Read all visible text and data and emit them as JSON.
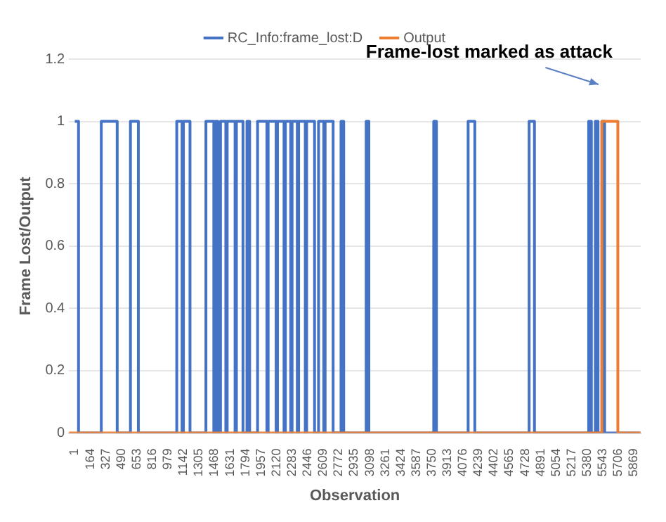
{
  "chart_data": {
    "type": "step",
    "xlabel": "Observation",
    "ylabel": "Frame Lost/Output",
    "xlim": [
      -60,
      5940
    ],
    "xticks": [
      1,
      164,
      327,
      490,
      653,
      816,
      979,
      1142,
      1305,
      1468,
      1631,
      1794,
      1957,
      2120,
      2283,
      2446,
      2609,
      2772,
      2935,
      3098,
      3261,
      3424,
      3587,
      3750,
      3913,
      4076,
      4239,
      4402,
      4565,
      4728,
      4891,
      5054,
      5217,
      5380,
      5543,
      5706,
      5869
    ],
    "ylim": [
      0,
      1.2
    ],
    "yticks": [
      0,
      0.2,
      0.4,
      0.6,
      0.8,
      1,
      1.2
    ],
    "grid": "y",
    "legend": "top",
    "marker": "none",
    "line_style": "solid",
    "annotations": [
      "Frame-lost marked as attack"
    ],
    "series": [
      {
        "name": "RC_Info:frame_lost:D",
        "color": "#4472c4",
        "x": [
          1,
          40,
          279,
          446,
          585,
          668,
          1071,
          1127,
          1141,
          1210,
          1377,
          1460,
          1474,
          1502,
          1530,
          1586,
          1600,
          1683,
          1697,
          1766,
          1808,
          1836,
          1919,
          2017,
          2030,
          2114,
          2128,
          2197,
          2211,
          2267,
          2281,
          2336,
          2350,
          2420,
          2434,
          2517,
          2559,
          2614,
          2628,
          2712,
          2795,
          2823,
          3059,
          3087,
          3768,
          3796,
          4129,
          4199,
          4769,
          4825,
          5394,
          5422,
          5464,
          5492,
          5533,
          5561,
          5930
        ],
        "values": [
          1,
          0,
          1,
          0,
          1,
          0,
          1,
          0,
          1,
          0,
          1,
          0,
          1,
          0,
          1,
          0,
          1,
          0,
          1,
          0,
          1,
          0,
          1,
          0,
          1,
          0,
          1,
          0,
          1,
          0,
          1,
          0,
          1,
          0,
          1,
          0,
          1,
          0,
          1,
          0,
          1,
          0,
          1,
          0,
          1,
          0,
          1,
          0,
          1,
          0,
          1,
          0,
          1,
          0,
          1,
          0,
          0
        ]
      },
      {
        "name": "Output",
        "color": "#ed7d31",
        "x": [
          -60,
          5533,
          5700,
          5940
        ],
        "values": [
          0,
          1,
          0,
          0
        ]
      }
    ]
  }
}
